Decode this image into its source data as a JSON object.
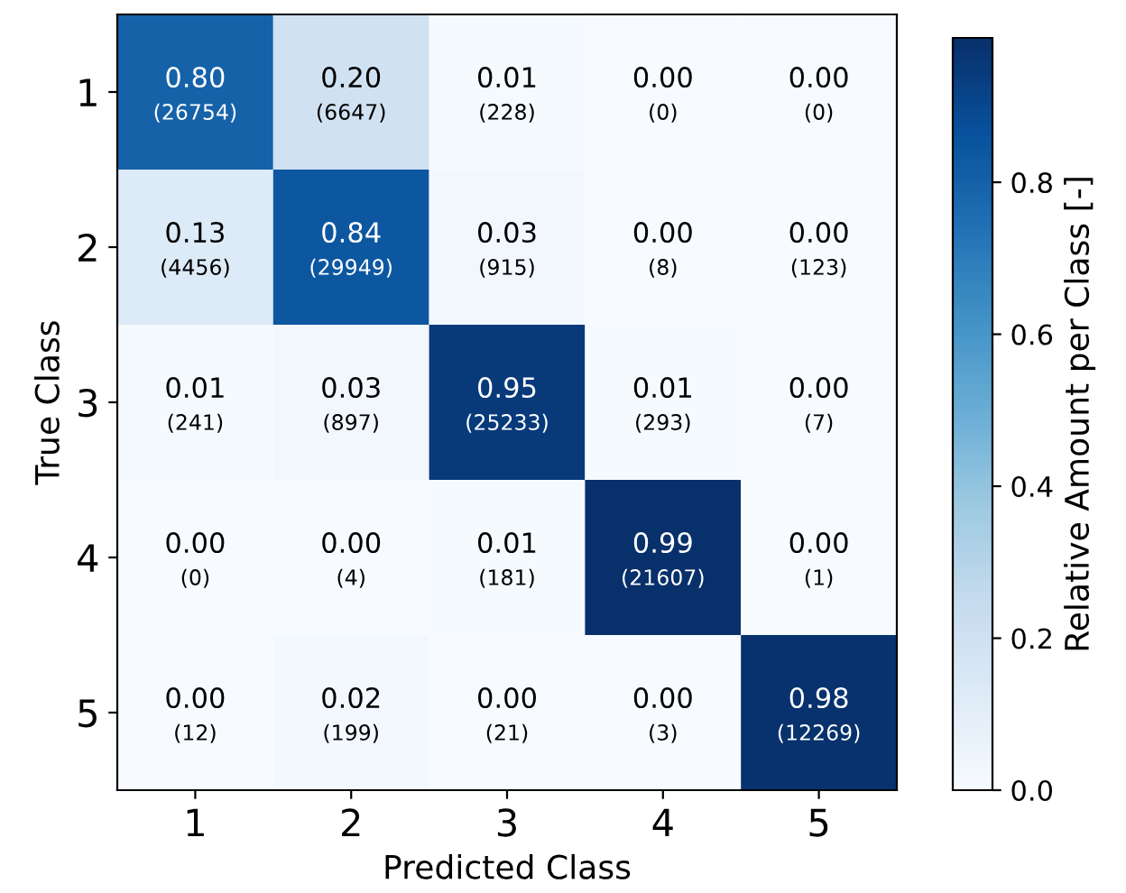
{
  "chart_data": {
    "type": "heatmap",
    "xlabel": "Predicted Class",
    "ylabel": "True Class",
    "clabel": "Relative Amount per Class [-]",
    "categories": [
      "1",
      "2",
      "3",
      "4",
      "5"
    ],
    "y_categories": [
      "1",
      "2",
      "3",
      "4",
      "5"
    ],
    "cells": [
      [
        0.8,
        0.2,
        0.01,
        0.0,
        0.0
      ],
      [
        0.13,
        0.84,
        0.03,
        0.0,
        0.0
      ],
      [
        0.01,
        0.03,
        0.95,
        0.01,
        0.0
      ],
      [
        0.0,
        0.0,
        0.01,
        0.99,
        0.0
      ],
      [
        0.0,
        0.02,
        0.0,
        0.0,
        0.98
      ]
    ],
    "cell_labels": [
      [
        "0.80\n(26754)",
        "0.20\n(6647)",
        "0.01\n(228)",
        "0.00\n(0)",
        "0.00\n(0)"
      ],
      [
        "0.13\n(4456)",
        "0.84\n(29949)",
        "0.03\n(915)",
        "0.00\n(8)",
        "0.00\n(123)"
      ],
      [
        "0.01\n(241)",
        "0.03\n(897)",
        "0.95\n(25233)",
        "0.01\n(293)",
        "0.00\n(7)"
      ],
      [
        "0.00\n(0)",
        "0.00\n(4)",
        "0.01\n(181)",
        "0.99\n(21607)",
        "0.00\n(1)"
      ],
      [
        "0.00\n(12)",
        "0.02\n(199)",
        "0.00\n(21)",
        "0.00\n(3)",
        "0.98\n(12269)"
      ]
    ],
    "clim": [
      0,
      0.99
    ],
    "cticks": [
      {
        "value": 0,
        "label": "0.0"
      },
      {
        "value": 0.2,
        "label": "0.2"
      },
      {
        "value": 0.4,
        "label": "0.4"
      },
      {
        "value": 0.6,
        "label": "0.6"
      },
      {
        "value": 0.8,
        "label": "0.8"
      }
    ],
    "grid": false
  }
}
